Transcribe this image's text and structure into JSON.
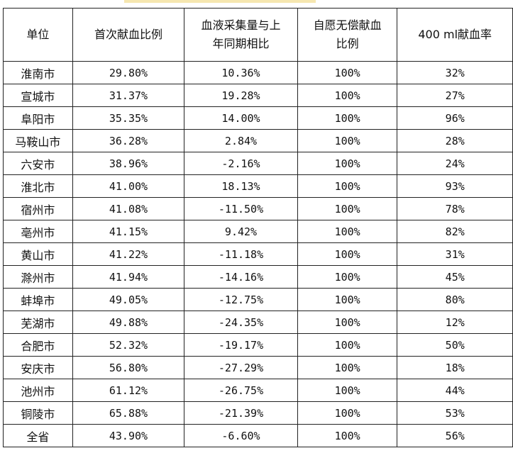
{
  "header": {
    "col_city": "单位",
    "col_first_ratio": "首次献血比例",
    "col_volume_change_l1": "血液采集量与上",
    "col_volume_change_l2": "年同期相比",
    "col_voluntary_l1": "自愿无偿献血",
    "col_voluntary_l2": "比例",
    "col_400ml": "400 ml献血率"
  },
  "rows": [
    {
      "city": "淮南市",
      "first": "29.80%",
      "change": "10.36%",
      "voluntary": "100%",
      "rate400": "32%"
    },
    {
      "city": "宣城市",
      "first": "31.37%",
      "change": "19.28%",
      "voluntary": "100%",
      "rate400": "27%"
    },
    {
      "city": "阜阳市",
      "first": "35.35%",
      "change": "14.00%",
      "voluntary": "100%",
      "rate400": "96%"
    },
    {
      "city": "马鞍山市",
      "first": "36.28%",
      "change": "2.84%",
      "voluntary": "100%",
      "rate400": "28%"
    },
    {
      "city": "六安市",
      "first": "38.96%",
      "change": "-2.16%",
      "voluntary": "100%",
      "rate400": "24%"
    },
    {
      "city": "淮北市",
      "first": "41.00%",
      "change": "18.13%",
      "voluntary": "100%",
      "rate400": "93%"
    },
    {
      "city": "宿州市",
      "first": "41.08%",
      "change": "-11.50%",
      "voluntary": "100%",
      "rate400": "78%"
    },
    {
      "city": "亳州市",
      "first": "41.15%",
      "change": "9.42%",
      "voluntary": "100%",
      "rate400": "82%"
    },
    {
      "city": "黄山市",
      "first": "41.22%",
      "change": "-11.18%",
      "voluntary": "100%",
      "rate400": "31%"
    },
    {
      "city": "滁州市",
      "first": "41.94%",
      "change": "-14.16%",
      "voluntary": "100%",
      "rate400": "45%"
    },
    {
      "city": "蚌埠市",
      "first": "49.05%",
      "change": "-12.75%",
      "voluntary": "100%",
      "rate400": "80%"
    },
    {
      "city": "芜湖市",
      "first": "49.88%",
      "change": "-24.35%",
      "voluntary": "100%",
      "rate400": "12%"
    },
    {
      "city": "合肥市",
      "first": "52.32%",
      "change": "-19.17%",
      "voluntary": "100%",
      "rate400": "50%"
    },
    {
      "city": "安庆市",
      "first": "56.80%",
      "change": "-27.29%",
      "voluntary": "100%",
      "rate400": "18%"
    },
    {
      "city": "池州市",
      "first": "61.12%",
      "change": "-26.75%",
      "voluntary": "100%",
      "rate400": "44%"
    },
    {
      "city": "铜陵市",
      "first": "65.88%",
      "change": "-21.39%",
      "voluntary": "100%",
      "rate400": "53%"
    },
    {
      "city": "全省",
      "first": "43.90%",
      "change": "-6.60%",
      "voluntary": "100%",
      "rate400": "56%"
    }
  ]
}
